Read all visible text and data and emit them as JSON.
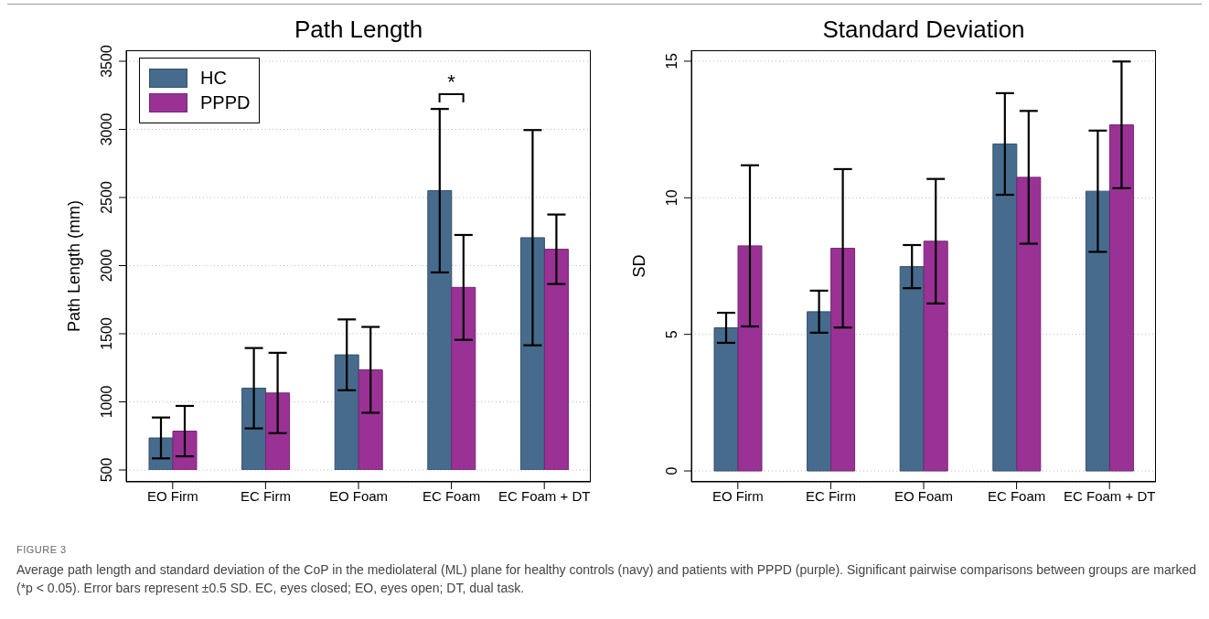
{
  "chart_data": [
    {
      "type": "bar",
      "title": "Path Length",
      "ylabel": "Path Length (mm)",
      "categories": [
        "EO Firm",
        "EC Firm",
        "EO Foam",
        "EC Foam",
        "EC Foam + DT"
      ],
      "series": [
        {
          "name": "HC",
          "color": "#476b8c",
          "values": [
            735,
            1100,
            1345,
            2550,
            2205
          ],
          "errors": [
            150,
            295,
            260,
            600,
            790
          ]
        },
        {
          "name": "PPPD",
          "color": "#9a3296",
          "values": [
            785,
            1065,
            1235,
            1840,
            2120
          ],
          "errors": [
            185,
            295,
            315,
            385,
            255
          ]
        }
      ],
      "ylim": [
        500,
        3500
      ],
      "yticks": [
        500,
        1000,
        1500,
        2000,
        2500,
        3000,
        3500
      ],
      "grid": "y",
      "legend": "top left",
      "annotations": [
        "*",
        "FIGURE 3",
        "Average path length and standard deviation of the CoP in the mediolateral (ML) plane for healthy controls (navy) and patients with PPPD (purple). Significant pairwise comparisons between groups are marked (*p < 0.05). Error bars represent ±0.5 SD. EC, eyes closed; EO, eyes open; DT, dual task."
      ]
    },
    {
      "type": "bar",
      "title": "Standard Deviation",
      "ylabel": "SD",
      "categories": [
        "EO Firm",
        "EC Firm",
        "EO Foam",
        "EC Foam",
        "EC Foam + DT"
      ],
      "series": [
        {
          "color": "#476b8c",
          "values": [
            5.24,
            5.83,
            7.48,
            11.97,
            10.24
          ],
          "errors": [
            0.55,
            0.77,
            0.79,
            1.86,
            2.22
          ]
        },
        {
          "color": "#9a3296",
          "values": [
            8.24,
            8.15,
            8.41,
            10.75,
            12.67
          ],
          "errors": [
            2.95,
            2.9,
            2.28,
            2.43,
            2.32
          ]
        }
      ],
      "ylim": [
        -0.4,
        15.4
      ],
      "yticks": [
        0,
        5,
        10,
        15
      ],
      "grid": "y"
    }
  ]
}
